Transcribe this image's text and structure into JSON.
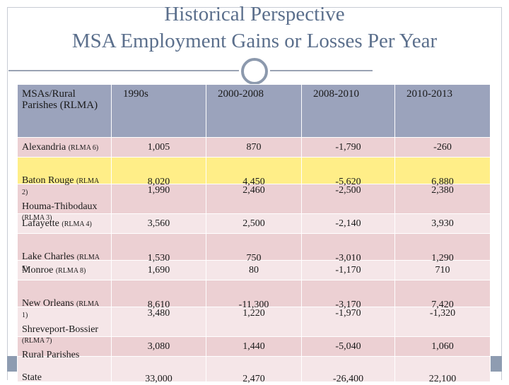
{
  "title": {
    "line1": "Historical Perspective",
    "line2": "MSA Employment Gains or Losses Per Year"
  },
  "table": {
    "headers": [
      "MSAs/Rural Parishes (RLMA)",
      "1990s",
      "2000-2008",
      "2008-2010",
      "2010-2013"
    ],
    "rows": [
      {
        "name": "Alexandria",
        "tag": "(RLMA 6)",
        "v": [
          "1,005",
          "870",
          "-1,790",
          "-260"
        ]
      },
      {
        "name": "Baton Rouge",
        "tag": "(RLMA 2)",
        "v": [
          "8,020",
          "4,450",
          "-5,620",
          "6,880"
        ]
      },
      {
        "name": "Houma-Thibodaux",
        "tag": "(RLMA 3)",
        "v": [
          "1,990",
          "2,460",
          "-2,500",
          "2,380"
        ]
      },
      {
        "name": "Lafayette",
        "tag": "(RLMA 4)",
        "v": [
          "3,560",
          "2,500",
          "-2,140",
          "3,930"
        ]
      },
      {
        "name": "Lake Charles",
        "tag": "(RLMA 5)",
        "v": [
          "1,530",
          "750",
          "-3,010",
          "1,290"
        ]
      },
      {
        "name": "Monroe",
        "tag": "(RLMA 8)",
        "v": [
          "1,690",
          "80",
          "-1,170",
          "710"
        ]
      },
      {
        "name": "New Orleans",
        "tag": "(RLMA 1)",
        "v": [
          "8,610",
          "-11,300",
          "-3,170",
          "7,420"
        ]
      },
      {
        "name": "Shreveport-Bossier",
        "tag": "(RLMA 7)",
        "v": [
          "3,480",
          "1,220",
          "-1,970",
          "-1,320"
        ]
      },
      {
        "name": "Rural Parishes",
        "tag": "",
        "v": [
          "3,080",
          "1,440",
          "-5,040",
          "1,060"
        ]
      },
      {
        "name": "State",
        "tag": "",
        "v": [
          "33,000",
          "2,470",
          "-26,400",
          "22,100"
        ]
      }
    ]
  }
}
